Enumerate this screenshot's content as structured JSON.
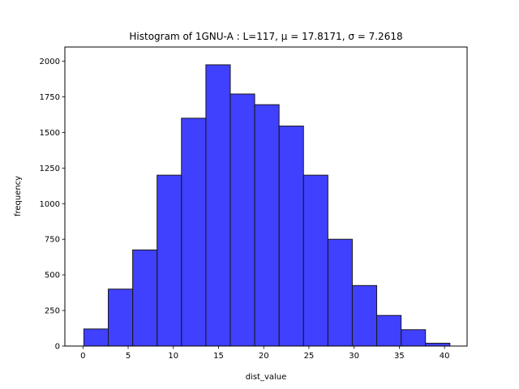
{
  "chart_data": {
    "type": "bar",
    "title": "Histogram of 1GNU-A : L=117, μ = 17.8171, σ = 7.2618",
    "xlabel": "dist_value",
    "ylabel": "frequency",
    "xlim": [
      -2.0,
      42.5
    ],
    "ylim": [
      0,
      2100
    ],
    "xticks": [
      0,
      5,
      10,
      15,
      20,
      25,
      30,
      35,
      40
    ],
    "yticks": [
      0,
      250,
      500,
      750,
      1000,
      1250,
      1500,
      1750,
      2000
    ],
    "bin_edges": [
      0.1,
      2.8,
      5.5,
      8.2,
      10.9,
      13.6,
      16.3,
      19.0,
      21.7,
      24.4,
      27.1,
      29.8,
      32.5,
      35.2,
      37.9,
      40.6
    ],
    "values": [
      120,
      400,
      675,
      1200,
      1600,
      1975,
      1770,
      1695,
      1545,
      1200,
      750,
      425,
      215,
      115,
      20
    ],
    "bar_color": "#0000ff",
    "bar_alpha": 0.75,
    "edge_color": "#1a1a1a",
    "grid": false,
    "legend": "none"
  }
}
